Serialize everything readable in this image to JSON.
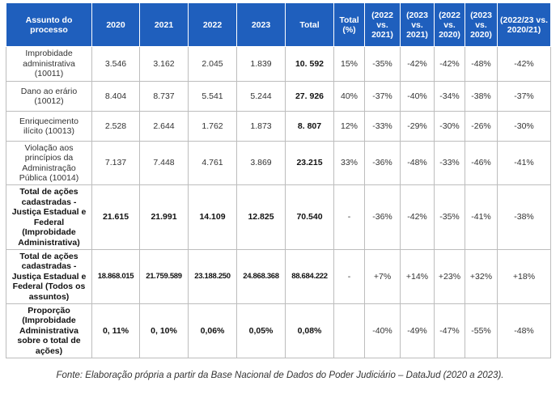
{
  "table": {
    "headers": [
      "Assunto do processo",
      "2020",
      "2021",
      "2022",
      "2023",
      "Total",
      "Total (%)",
      "(2022 vs. 2021)",
      "(2023 vs. 2021)",
      "(2022 vs. 2020)",
      "(2023 vs. 2020)",
      "(2022/23 vs. 2020/21)"
    ],
    "rows": [
      [
        "Improbidade administrativa (10011)",
        "3.546",
        "3.162",
        "2.045",
        "1.839",
        "10. 592",
        "15%",
        "-35%",
        "-42%",
        "-42%",
        "-48%",
        "-42%"
      ],
      [
        "Dano ao erário (10012)",
        "8.404",
        "8.737",
        "5.541",
        "5.244",
        "27. 926",
        "40%",
        "-37%",
        "-40%",
        "-34%",
        "-38%",
        "-37%"
      ],
      [
        "Enriquecimento ilícito (10013)",
        "2.528",
        "2.644",
        "1.762",
        "1.873",
        "8. 807",
        "12%",
        "-33%",
        "-29%",
        "-30%",
        "-26%",
        "-30%"
      ],
      [
        "Violação aos princípios da Administração Pública (10014)",
        "7.137",
        "7.448",
        "4.761",
        "3.869",
        "23.215",
        "33%",
        "-36%",
        "-48%",
        "-33%",
        "-46%",
        "-41%"
      ],
      [
        "Total de ações cadastradas - Justiça Estadual e Federal (Improbidade Administrativa)",
        "21.615",
        "21.991",
        "14.109",
        "12.825",
        "70.540",
        "-",
        "-36%",
        "-42%",
        "-35%",
        "-41%",
        "-38%"
      ],
      [
        "Total de ações cadastradas - Justiça Estadual e Federal (Todos os assuntos)",
        "18.868.015",
        "21.759.589",
        "23.188.250",
        "24.868.368",
        "88.684.222",
        "-",
        "+7%",
        "+14%",
        "+23%",
        "+32%",
        "+18%"
      ],
      [
        "Proporção (Improbidade Administrativa sobre o total de ações)",
        "0, 11%",
        "0, 10%",
        "0,06%",
        "0,05%",
        "0,08%",
        "",
        "-40%",
        "-49%",
        "-47%",
        "-55%",
        "-48%"
      ]
    ]
  },
  "source": "Fonte: Elaboração própria a partir da Base Nacional de Dados do Poder Judiciário – DataJud (2020 a 2023)."
}
